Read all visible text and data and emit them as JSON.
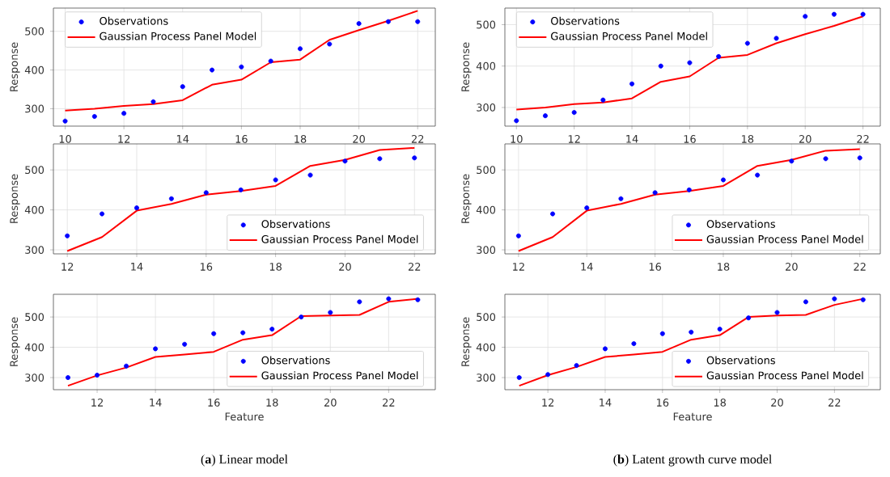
{
  "chart_data": [
    {
      "type": "line",
      "ylabel": "Response",
      "x": [
        10,
        11,
        12,
        13,
        14,
        15,
        16,
        17,
        18,
        19,
        20,
        21,
        22
      ],
      "xlim": [
        9.6,
        22.6
      ],
      "ylim": [
        255,
        560
      ],
      "xticks": [
        10,
        12,
        14,
        16,
        18,
        20,
        22
      ],
      "yticks": [
        300,
        400,
        500
      ],
      "grid": true,
      "legend": "top left",
      "series": [
        {
          "name": "Observations",
          "type": "scatter",
          "marker": "circle",
          "color": "#0000ff",
          "values": [
            268,
            280,
            288,
            318,
            357,
            400,
            408,
            423,
            455,
            467,
            520,
            525,
            525
          ]
        },
        {
          "name": "Gaussian Process Panel Model",
          "type": "line",
          "line_style": "solid",
          "color": "#ff0000",
          "values": [
            295,
            300,
            307,
            312,
            322,
            362,
            375,
            420,
            427,
            478,
            503,
            527,
            553
          ]
        }
      ]
    },
    {
      "type": "line",
      "ylabel": "Response",
      "x": [
        10,
        11,
        12,
        13,
        14,
        15,
        16,
        17,
        18,
        19,
        20,
        21,
        22
      ],
      "xlim": [
        9.6,
        22.6
      ],
      "ylim": [
        255,
        540
      ],
      "xticks": [
        10,
        12,
        14,
        16,
        18,
        20,
        22
      ],
      "yticks": [
        300,
        400,
        500
      ],
      "grid": true,
      "legend": "top left",
      "series": [
        {
          "name": "Observations",
          "type": "scatter",
          "marker": "circle",
          "color": "#0000ff",
          "values": [
            268,
            280,
            288,
            318,
            357,
            400,
            408,
            423,
            455,
            467,
            520,
            525,
            525
          ]
        },
        {
          "name": "Gaussian Process Panel Model",
          "type": "line",
          "line_style": "solid",
          "color": "#ff0000",
          "values": [
            295,
            300,
            308,
            312,
            322,
            362,
            375,
            420,
            427,
            455,
            477,
            497,
            520
          ]
        }
      ]
    },
    {
      "type": "line",
      "ylabel": "Response",
      "x": [
        12,
        13,
        14,
        15,
        16,
        17,
        18,
        19,
        20,
        21,
        22
      ],
      "xlim": [
        11.6,
        22.6
      ],
      "ylim": [
        290,
        565
      ],
      "xticks": [
        12,
        14,
        16,
        18,
        20,
        22
      ],
      "yticks": [
        300,
        400,
        500
      ],
      "grid": true,
      "legend": "bottom right",
      "series": [
        {
          "name": "Observations",
          "type": "scatter",
          "marker": "circle",
          "color": "#0000ff",
          "values": [
            335,
            390,
            405,
            428,
            443,
            450,
            475,
            487,
            522,
            528,
            530
          ]
        },
        {
          "name": "Gaussian Process Panel Model",
          "type": "line",
          "line_style": "solid",
          "color": "#ff0000",
          "values": [
            297,
            332,
            398,
            415,
            438,
            447,
            460,
            510,
            525,
            550,
            555
          ]
        }
      ]
    },
    {
      "type": "line",
      "ylabel": "Response",
      "x": [
        12,
        13,
        14,
        15,
        16,
        17,
        18,
        19,
        20,
        21,
        22
      ],
      "xlim": [
        11.6,
        22.6
      ],
      "ylim": [
        290,
        565
      ],
      "xticks": [
        12,
        14,
        16,
        18,
        20,
        22
      ],
      "yticks": [
        300,
        400,
        500
      ],
      "grid": true,
      "legend": "bottom right",
      "series": [
        {
          "name": "Observations",
          "type": "scatter",
          "marker": "circle",
          "color": "#0000ff",
          "values": [
            335,
            390,
            405,
            428,
            443,
            450,
            475,
            487,
            522,
            528,
            530
          ]
        },
        {
          "name": "Gaussian Process Panel Model",
          "type": "line",
          "line_style": "solid",
          "color": "#ff0000",
          "values": [
            297,
            332,
            398,
            415,
            438,
            447,
            460,
            510,
            525,
            548,
            552
          ]
        }
      ]
    },
    {
      "type": "line",
      "xlabel": "Feature",
      "ylabel": "Response",
      "annotations": [
        "(**a**) Linear model"
      ],
      "x": [
        11,
        12,
        13,
        14,
        15,
        16,
        17,
        18,
        19,
        20,
        21,
        22,
        23
      ],
      "xlim": [
        10.5,
        23.6
      ],
      "ylim": [
        260,
        575
      ],
      "xticks": [
        12,
        14,
        16,
        18,
        20,
        22
      ],
      "yticks": [
        300,
        400,
        500
      ],
      "grid": true,
      "legend": "bottom right",
      "series": [
        {
          "name": "Observations",
          "type": "scatter",
          "marker": "circle",
          "color": "#0000ff",
          "values": [
            300,
            308,
            338,
            395,
            410,
            445,
            448,
            460,
            500,
            515,
            550,
            560,
            557
          ]
        },
        {
          "name": "Gaussian Process Panel Model",
          "type": "line",
          "line_style": "solid",
          "color": "#ff0000",
          "values": [
            273,
            307,
            333,
            368,
            376,
            385,
            425,
            440,
            503,
            505,
            507,
            550,
            560
          ]
        }
      ]
    },
    {
      "type": "line",
      "xlabel": "Feature",
      "ylabel": "Response",
      "annotations": [
        "(**b**) Latent growth curve model"
      ],
      "x": [
        11,
        12,
        13,
        14,
        15,
        16,
        17,
        18,
        19,
        20,
        21,
        22,
        23
      ],
      "xlim": [
        10.5,
        23.6
      ],
      "ylim": [
        260,
        575
      ],
      "xticks": [
        12,
        14,
        16,
        18,
        20,
        22
      ],
      "yticks": [
        300,
        400,
        500
      ],
      "grid": true,
      "legend": "bottom right",
      "series": [
        {
          "name": "Observations",
          "type": "scatter",
          "marker": "circle",
          "color": "#0000ff",
          "values": [
            300,
            310,
            340,
            395,
            412,
            445,
            450,
            460,
            497,
            515,
            550,
            560,
            557
          ]
        },
        {
          "name": "Gaussian Process Panel Model",
          "type": "line",
          "line_style": "solid",
          "color": "#ff0000",
          "values": [
            273,
            308,
            335,
            368,
            376,
            385,
            425,
            440,
            500,
            505,
            507,
            540,
            560
          ]
        }
      ]
    }
  ]
}
